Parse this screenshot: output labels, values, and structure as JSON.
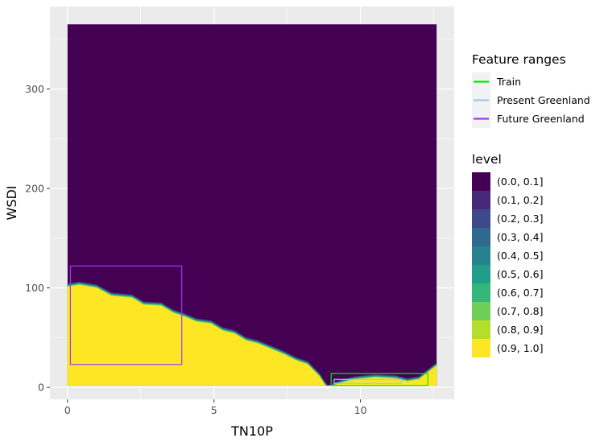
{
  "chart_data": {
    "type": "heatmap",
    "subtype": "filled-contour",
    "title": "",
    "xlabel": "TN10P",
    "ylabel": "WSDI",
    "xlim": [
      -0.6,
      13.2
    ],
    "ylim": [
      -12,
      383
    ],
    "x_ticks": [
      0,
      5,
      10
    ],
    "y_ticks": [
      0,
      100,
      200,
      300
    ],
    "grid": true,
    "data_extent": {
      "x": [
        0,
        12.6
      ],
      "y": [
        2,
        365
      ]
    },
    "contour_boundary_09": [
      {
        "x": 0.0,
        "y": 101
      },
      {
        "x": 0.4,
        "y": 103
      },
      {
        "x": 1.0,
        "y": 100
      },
      {
        "x": 1.5,
        "y": 92
      },
      {
        "x": 2.2,
        "y": 90
      },
      {
        "x": 2.6,
        "y": 83
      },
      {
        "x": 3.2,
        "y": 82
      },
      {
        "x": 3.6,
        "y": 75
      },
      {
        "x": 4.0,
        "y": 71
      },
      {
        "x": 4.4,
        "y": 66
      },
      {
        "x": 4.9,
        "y": 64
      },
      {
        "x": 5.3,
        "y": 57
      },
      {
        "x": 5.7,
        "y": 54
      },
      {
        "x": 6.1,
        "y": 47
      },
      {
        "x": 6.5,
        "y": 44
      },
      {
        "x": 7.0,
        "y": 38
      },
      {
        "x": 7.4,
        "y": 33
      },
      {
        "x": 7.8,
        "y": 27
      },
      {
        "x": 8.2,
        "y": 23
      },
      {
        "x": 8.6,
        "y": 11
      },
      {
        "x": 8.8,
        "y": 2
      }
    ],
    "contour_basin_09": [
      {
        "x": 9.1,
        "y": 2
      },
      {
        "x": 9.4,
        "y": 5
      },
      {
        "x": 9.8,
        "y": 8
      },
      {
        "x": 10.5,
        "y": 10
      },
      {
        "x": 11.2,
        "y": 9
      },
      {
        "x": 11.6,
        "y": 6
      },
      {
        "x": 12.0,
        "y": 8
      },
      {
        "x": 12.3,
        "y": 15
      },
      {
        "x": 12.6,
        "y": 22
      }
    ],
    "feature_ranges_title": "Feature ranges",
    "feature_ranges": [
      {
        "name": "Train",
        "color": "#00ee00",
        "x": [
          9.0,
          12.3
        ],
        "y": [
          2,
          14
        ]
      },
      {
        "name": "Present Greenland",
        "color": "#9dc9f0",
        "x": [
          9.1,
          11.4
        ],
        "y": [
          4,
          8
        ]
      },
      {
        "name": "Future Greenland",
        "color": "#a03cf0",
        "x": [
          0.1,
          3.9
        ],
        "y": [
          23,
          122
        ]
      }
    ],
    "level_legend_title": "level",
    "levels": [
      {
        "label": "(0.0, 0.1]",
        "color": "#440154"
      },
      {
        "label": "(0.1, 0.2]",
        "color": "#482878"
      },
      {
        "label": "(0.2, 0.3]",
        "color": "#3e4989"
      },
      {
        "label": "(0.3, 0.4]",
        "color": "#31688e"
      },
      {
        "label": "(0.4, 0.5]",
        "color": "#26828e"
      },
      {
        "label": "(0.5, 0.6]",
        "color": "#1f9e89"
      },
      {
        "label": "(0.6, 0.7]",
        "color": "#35b779"
      },
      {
        "label": "(0.7, 0.8]",
        "color": "#6ece58"
      },
      {
        "label": "(0.8, 0.9]",
        "color": "#b5de2b"
      },
      {
        "label": "(0.9, 1.0]",
        "color": "#fde725"
      }
    ],
    "panel_background": "#ebebeb",
    "grid_color": "#ffffff"
  }
}
